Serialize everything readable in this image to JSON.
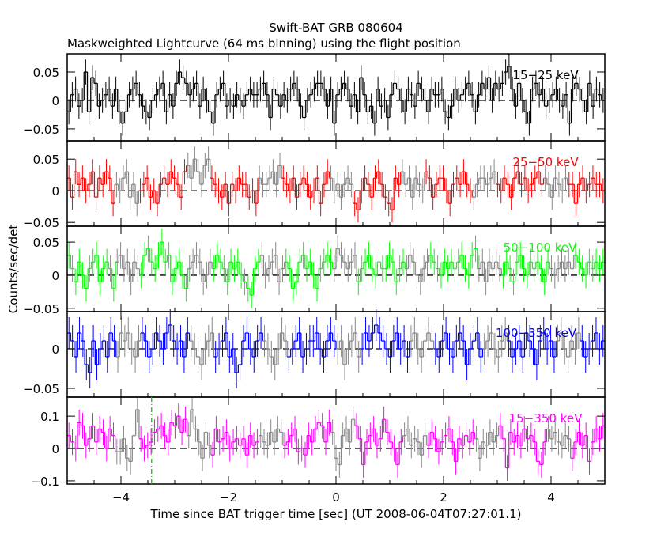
{
  "chart_data": {
    "type": "line",
    "title": "Swift-BAT GRB 080604",
    "subtitle": "Maskweighted Lightcurve (64 ms binning) using the flight position",
    "xlabel": "Time since BAT trigger time [sec] (UT 2008-06-04T07:27:01.1)",
    "ylabel": "Counts/sec/det",
    "xlim": [
      -5,
      5
    ],
    "xticks": [
      -4,
      -2,
      0,
      2,
      4
    ],
    "xtick_labels": [
      "−4",
      "−2",
      "0",
      "2",
      "4"
    ],
    "bin_width_sec": 0.064,
    "marker_line": {
      "x": -3.43,
      "color": "#00cc00",
      "panel": 4
    },
    "panels": [
      {
        "name": "15-25 keV",
        "label": "15−25 keV",
        "color": "#000000",
        "ylim": [
          -0.071,
          0.082
        ],
        "yticks": [
          -0.05,
          0,
          0.05
        ],
        "ytick_labels": [
          "−0.05",
          "0",
          "0.05"
        ],
        "err": 0.022,
        "values": [
          -0.02,
          0.01,
          0.02,
          -0.01,
          0,
          0.05,
          -0.02,
          0.04,
          0.03,
          -0.01,
          0,
          0.01,
          0.02,
          -0.01,
          0.02,
          -0.02,
          -0.04,
          -0.02,
          0.01,
          0.02,
          0.03,
          0.01,
          -0.01,
          -0.02,
          -0.03,
          0,
          0.01,
          0.02,
          0.03,
          -0.02,
          0.01,
          -0.01,
          0.03,
          0.05,
          0.04,
          0.03,
          0.01,
          0.02,
          0.03,
          -0.01,
          0.02,
          0,
          -0.02,
          -0.04,
          0.01,
          0.02,
          0.03,
          -0.01,
          0,
          -0.01,
          0.01,
          0,
          -0.01,
          0.01,
          0.02,
          0.01,
          0.01,
          0.02,
          0.03,
          0.01,
          -0.03,
          0.02,
          0.01,
          -0.01,
          0.01,
          0,
          0.02,
          0.03,
          0.02,
          -0.01,
          -0.03,
          0,
          0.01,
          0.02,
          0.03,
          0.03,
          0.02,
          -0.01,
          0.02,
          -0.04,
          0.01,
          0.02,
          0.03,
          0.02,
          -0.01,
          0.01,
          -0.02,
          0.04,
          0.01,
          -0.02,
          -0.01,
          -0.04,
          0.02,
          -0.01,
          0,
          -0.03,
          0.01,
          0.03,
          0.02,
          0,
          -0.02,
          0.02,
          0.01,
          -0.01,
          0.03,
          0.02,
          0,
          -0.02,
          0.02,
          0.01,
          0.01,
          0.02,
          -0.02,
          -0.03,
          -0.01,
          0.02,
          0,
          0.01,
          0.02,
          0.03,
          0.01,
          -0.02,
          0.01,
          0.03,
          0.02,
          0.04,
          0,
          0.03,
          0.02,
          0.03,
          0.05,
          0.06,
          0.02,
          -0.01,
          0.03,
          0,
          -0.02,
          -0.04,
          0.02,
          0.03,
          0.01,
          0.02,
          -0.01,
          0,
          0.01,
          0.02,
          0,
          -0.01,
          0.01,
          -0.04,
          0.02,
          0.03,
          0.02,
          0,
          -0.02,
          0.03,
          -0.01,
          0.02,
          0.01,
          0
        ]
      },
      {
        "name": "25-50 keV",
        "label": "25−50 keV",
        "color": "#ff0000",
        "ylim": [
          -0.056,
          0.079
        ],
        "yticks": [
          -0.05,
          0,
          0.05
        ],
        "ytick_labels": [
          "−0.05",
          "0",
          "0.05"
        ],
        "err": 0.02,
        "values": [
          0.02,
          -0.01,
          0.03,
          0.01,
          0.02,
          0,
          0.01,
          0.03,
          -0.01,
          0.02,
          0.01,
          0.03,
          0.02,
          -0.02,
          0.01,
          0,
          0.02,
          0.03,
          -0.01,
          0.01,
          -0.02,
          0,
          0.01,
          0.02,
          -0.01,
          0,
          -0.02,
          0.01,
          0.02,
          0.01,
          0.03,
          0.02,
          0.01,
          -0.01,
          0.03,
          0.04,
          0.02,
          0.05,
          0.03,
          0.01,
          0.04,
          0.05,
          0.02,
          0.01,
          0,
          -0.01,
          0.01,
          -0.02,
          0.01,
          0,
          0.02,
          0.01,
          0.01,
          -0.01,
          0,
          -0.02,
          0.02,
          0.01,
          0.01,
          0.02,
          0.03,
          0.01,
          0.04,
          0.02,
          0.01,
          0,
          0.02,
          -0.01,
          0.01,
          0.02,
          0.01,
          -0.01,
          0,
          0.02,
          -0.02,
          0.01,
          0.03,
          0.02,
          0,
          0.01,
          -0.01,
          0.01,
          0.02,
          0.01,
          -0.02,
          -0.03,
          0,
          0.02,
          0.01,
          -0.01,
          0.02,
          0.03,
          0.01,
          -0.01,
          -0.02,
          -0.03,
          0.02,
          0.01,
          0.03,
          0.01,
          0.02,
          -0.01,
          0.02,
          0.01,
          0,
          0.03,
          0.02,
          -0.01,
          0.01,
          0.02,
          0.02,
          0,
          -0.02,
          0.01,
          0.02,
          0.01,
          0.03,
          0.01,
          0,
          -0.01,
          0.01,
          0.02,
          0.02,
          0.01,
          0.02,
          0.03,
          0.01,
          0,
          0.02,
          0.01,
          -0.01,
          0.02,
          0.03,
          0.01,
          0.02,
          0,
          0.01,
          0.02,
          0.03,
          0.01,
          0.02,
          0.01,
          -0.01,
          0.02,
          0.01,
          0,
          0.02,
          0.01,
          0.01,
          -0.02,
          0.01,
          0.02,
          0,
          0.01,
          0.02,
          0.01,
          0.01,
          0
        ]
      },
      {
        "name": "50-100 keV",
        "label": "50−100 keV",
        "color": "#00ff00",
        "ylim": [
          -0.055,
          0.074
        ],
        "yticks": [
          -0.05,
          0,
          0.05
        ],
        "ytick_labels": [
          "−0.05",
          "0",
          "0.05"
        ],
        "err": 0.02,
        "values": [
          0.03,
          0.01,
          -0.01,
          0.02,
          0,
          -0.02,
          0.01,
          0.02,
          0.03,
          -0.01,
          0.01,
          0.02,
          0.01,
          -0.02,
          0.02,
          0.03,
          0.01,
          0.02,
          -0.01,
          0.02,
          0.01,
          0,
          0.03,
          0.04,
          0.02,
          0.01,
          0.03,
          0.05,
          0.02,
          0.03,
          -0.01,
          0.01,
          0.02,
          0,
          -0.02,
          0.01,
          0.02,
          0.03,
          0.02,
          -0.01,
          0,
          0.02,
          0.01,
          0.03,
          0.02,
          0.01,
          -0.01,
          0.02,
          0.01,
          0.02,
          0,
          -0.01,
          -0.02,
          -0.03,
          0.01,
          0.02,
          0.03,
          0,
          0.01,
          0.02,
          0.03,
          -0.01,
          0.01,
          0.02,
          0.01,
          -0.02,
          -0.01,
          0.02,
          0.03,
          0.01,
          0.02,
          0,
          -0.02,
          0.01,
          0.02,
          0.03,
          0.02,
          0.01,
          0.04,
          0.03,
          0.02,
          0.01,
          0.02,
          0.03,
          -0.01,
          0.01,
          0.02,
          0.03,
          0.01,
          0,
          0.02,
          0.01,
          0.01,
          0.03,
          0.02,
          -0.01,
          0.01,
          0.02,
          0.01,
          0.03,
          0.02,
          0,
          -0.01,
          0.01,
          0.02,
          0.03,
          0.02,
          0.01,
          0,
          0.02,
          0.01,
          0.02,
          0.01,
          0.02,
          0.03,
          0.01,
          0,
          0.03,
          0.04,
          0.01,
          0.02,
          -0.01,
          0.02,
          0.01,
          0.02,
          0.01,
          0,
          0.02,
          0.01,
          -0.01,
          0.02,
          0.03,
          0.01,
          0,
          0.02,
          0.01,
          0.02,
          0.01,
          -0.01,
          0.02,
          0.01,
          0,
          0.01,
          0.02,
          0.01,
          0.02,
          0.01,
          0.03,
          0.02,
          0.01,
          0,
          0.02,
          0.01,
          0.02,
          0.01,
          0.02
        ]
      },
      {
        "name": "100-350 keV",
        "label": "100−350 keV",
        "color": "#0000ff",
        "ylim": [
          -0.061,
          0.047
        ],
        "yticks": [
          -0.05,
          0
        ],
        "ytick_labels": [
          "−0.05",
          "0"
        ],
        "err": 0.02,
        "values": [
          0.02,
          0.01,
          -0.01,
          0.02,
          0.01,
          -0.02,
          -0.03,
          0.01,
          -0.02,
          0,
          0.01,
          -0.01,
          0.02,
          0.01,
          -0.01,
          0.02,
          0.01,
          0.02,
          0,
          -0.01,
          0.01,
          0.02,
          0.01,
          -0.01,
          0,
          0.02,
          0.01,
          0,
          0.02,
          0.03,
          0.01,
          0,
          0.01,
          -0.01,
          0.02,
          0.01,
          0,
          -0.01,
          -0.02,
          0,
          0.01,
          0.02,
          -0.01,
          0,
          0.01,
          0.02,
          -0.01,
          0,
          -0.03,
          -0.02,
          0.01,
          0.02,
          0,
          -0.01,
          0.01,
          0.02,
          0.01,
          0,
          -0.01,
          -0.02,
          0,
          0.02,
          0.01,
          -0.01,
          0,
          0.01,
          0.02,
          -0.01,
          0,
          0.01,
          0.01,
          0.02,
          0,
          -0.01,
          0.01,
          0.02,
          0.01,
          0,
          0.01,
          -0.02,
          0,
          0.01,
          0.02,
          -0.01,
          0,
          0.02,
          0.01,
          0.02,
          0.03,
          0.02,
          0.01,
          0,
          -0.01,
          0.01,
          0.02,
          0,
          0.01,
          -0.01,
          0.01,
          0.02,
          0,
          -0.01,
          0.01,
          0.02,
          0.01,
          0,
          -0.01,
          0.01,
          0.02,
          0,
          -0.01,
          0.01,
          0.02,
          0.01,
          -0.02,
          0,
          0.01,
          0.02,
          -0.01,
          0,
          0.01,
          0.02,
          0,
          -0.01,
          0.01,
          0.02,
          0.01,
          -0.01,
          0,
          0.01,
          -0.01,
          0.02,
          0.01,
          0,
          -0.02,
          0.01,
          0.02,
          0,
          0.01,
          -0.01,
          0.01,
          0.02,
          0,
          -0.01,
          0.01,
          0,
          0.02,
          0.01,
          -0.01,
          0,
          0.01,
          0.02,
          0,
          0.01
        ]
      },
      {
        "name": "15-350 keV",
        "label": "15−350 keV",
        "color": "#ff00ff",
        "ylim": [
          -0.11,
          0.159
        ],
        "yticks": [
          -0.1,
          0,
          0.1
        ],
        "ytick_labels": [
          "−0.1",
          "0",
          "0.1"
        ],
        "err": 0.04,
        "values": [
          0.04,
          0.02,
          0.0,
          0.08,
          0.07,
          0.01,
          0.03,
          0.07,
          0.02,
          0.06,
          0.05,
          0.0,
          0.06,
          0.04,
          -0.01,
          -0.01,
          0.03,
          -0.03,
          -0.04,
          0.04,
          0.12,
          0.03,
          0.0,
          0.01,
          0.02,
          0.05,
          0.06,
          0.07,
          0.04,
          0.02,
          0.08,
          0.07,
          0.1,
          0.05,
          0.09,
          0.04,
          0.12,
          0.06,
          0.02,
          -0.03,
          0.05,
          0.01,
          -0.02,
          0.06,
          0.02,
          0.03,
          0.05,
          0.0,
          0.02,
          0.03,
          0.01,
          0.03,
          -0.02,
          0.04,
          0.01,
          0.02,
          0.04,
          0.02,
          0.01,
          0.05,
          0.02,
          0.06,
          0.05,
          0.01,
          0.02,
          0.04,
          0.06,
          -0.01,
          0.0,
          -0.02,
          0.04,
          0.02,
          0.06,
          0.08,
          0.07,
          0.02,
          0.08,
          0.05,
          -0.03,
          -0.05,
          0.04,
          0.06,
          0.02,
          0.09,
          0.07,
          0.03,
          -0.05,
          0.02,
          0.04,
          0.06,
          0.01,
          0.03,
          0.09,
          0.05,
          0.02,
          0.0,
          -0.05,
          0.02,
          0.04,
          0.06,
          0.01,
          0.03,
          0.02,
          -0.02,
          0.04,
          0.01,
          0.05,
          0.03,
          -0.01,
          0.02,
          0.04,
          0.06,
          0.02,
          -0.04,
          0.03,
          0.01,
          0.04,
          0.02,
          0.05,
          0.03,
          -0.03,
          0.02,
          0.01,
          0.05,
          0.02,
          0.04,
          0.07,
          0.03,
          -0.06,
          0.05,
          0.02,
          0.04,
          0.01,
          0.06,
          0.03,
          0.04,
          0.02,
          -0.04,
          -0.05,
          0.02,
          0.06,
          0.03,
          0.05,
          0.02,
          0.01,
          0.04,
          0.03,
          -0.03,
          0.02,
          0.05,
          0.01,
          0.04,
          -0.04,
          0.02,
          0.06,
          0.03,
          0.07
        ]
      }
    ]
  }
}
